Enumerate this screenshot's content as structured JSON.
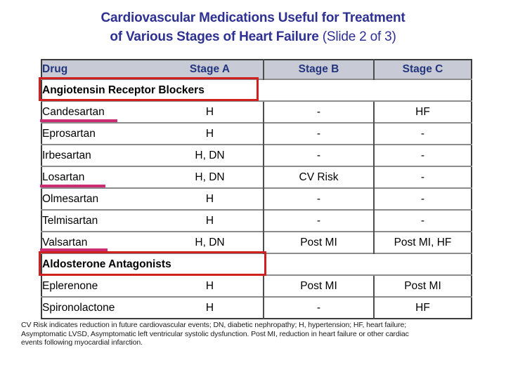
{
  "slide": {
    "title": {
      "line1": "Cardiovascular Medications Useful for Treatment",
      "line2_bold": "of Various Stages of Heart Failure",
      "line2_regular": " (Slide 2 of 3)"
    },
    "table": {
      "columns": [
        "Drug",
        "Stage A",
        "Stage B",
        "Stage C"
      ],
      "rows": [
        {
          "type": "section",
          "label": "Angiotensin Receptor Blockers",
          "highlighted": true
        },
        {
          "type": "drug",
          "name": "Candesartan",
          "underlined": true,
          "stage_a": "H",
          "stage_b": "-",
          "stage_c": "HF"
        },
        {
          "type": "drug",
          "name": "Eprosartan",
          "underlined": false,
          "stage_a": "H",
          "stage_b": "-",
          "stage_c": "-"
        },
        {
          "type": "drug",
          "name": "Irbesartan",
          "underlined": false,
          "stage_a": "H, DN",
          "stage_b": "-",
          "stage_c": "-"
        },
        {
          "type": "drug",
          "name": "Losartan",
          "underlined": true,
          "stage_a": "H, DN",
          "stage_b": "CV Risk",
          "stage_c": "-"
        },
        {
          "type": "drug",
          "name": "Olmesartan",
          "underlined": false,
          "stage_a": "H",
          "stage_b": "-",
          "stage_c": "-"
        },
        {
          "type": "drug",
          "name": "Telmisartan",
          "underlined": false,
          "stage_a": "H",
          "stage_b": "-",
          "stage_c": "-"
        },
        {
          "type": "drug",
          "name": "Valsartan",
          "underlined": true,
          "stage_a": "H, DN",
          "stage_b": "Post MI",
          "stage_c": "Post MI, HF"
        },
        {
          "type": "section",
          "label": "Aldosterone Antagonists",
          "highlighted": true
        },
        {
          "type": "drug",
          "name": "Eplerenone",
          "underlined": false,
          "stage_a": "H",
          "stage_b": "Post MI",
          "stage_c": "Post MI"
        },
        {
          "type": "drug",
          "name": "Spironolactone",
          "underlined": false,
          "stage_a": "H",
          "stage_b": "-",
          "stage_c": "HF"
        }
      ]
    },
    "footnote": {
      "lines": [
        "CV Risk indicates reduction in future cardiovascular events; DN, diabetic nephropathy; H, hypertension; HF, heart failure;",
        "Asymptomatic LVSD, Asymptomatic left ventricular systolic dysfunction. Post MI, reduction in heart failure or other cardiac",
        "events following myocardial infarction."
      ]
    },
    "colors": {
      "title_text": "#2e3192",
      "header_bg": "#c8cbd6",
      "header_text": "#23357d",
      "highlight_box_red": "#cf1f1f",
      "underline_pink": "#cc2d72"
    }
  }
}
